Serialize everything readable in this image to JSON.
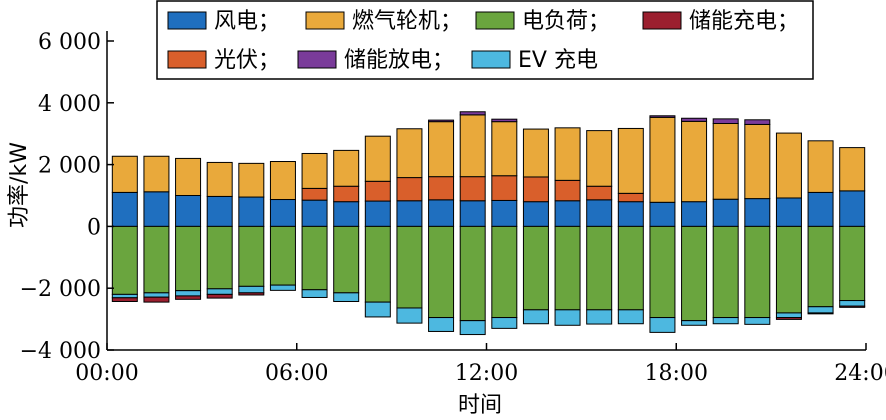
{
  "chart_data": {
    "type": "bar",
    "stacked": true,
    "xlabel": "时间",
    "ylabel": "功率/kW",
    "ylim": [
      -4000,
      6000
    ],
    "yticks": [
      6000,
      4000,
      2000,
      0,
      -2000,
      -4000
    ],
    "ytick_labels": [
      "6 000",
      "4 000",
      "2 000",
      "0",
      "−2 000",
      "−4 000"
    ],
    "xlim": [
      0,
      24
    ],
    "xticks": [
      0,
      6,
      12,
      18,
      24
    ],
    "xtick_labels": [
      "00:00",
      "06:00",
      "12:00",
      "18:00",
      "24:00"
    ],
    "grid": false,
    "legend_position": "top",
    "legend_rows": [
      [
        "风电；",
        "燃气轮机；",
        "电负荷；",
        "储能充电；"
      ],
      [
        "光伏；",
        "储能放电；",
        "EV 充电"
      ]
    ],
    "hours": [
      1,
      2,
      3,
      4,
      5,
      6,
      7,
      8,
      9,
      10,
      11,
      12,
      13,
      14,
      15,
      16,
      17,
      18,
      19,
      20,
      21,
      22,
      23,
      24
    ],
    "series": [
      {
        "name": "风电",
        "color": "#1f6fbf",
        "values": [
          1100,
          1120,
          1000,
          970,
          950,
          870,
          850,
          800,
          820,
          830,
          860,
          830,
          840,
          800,
          830,
          860,
          800,
          780,
          800,
          880,
          900,
          920,
          1100,
          1150
        ]
      },
      {
        "name": "光伏",
        "color": "#d95f2b",
        "values": [
          0,
          0,
          0,
          0,
          0,
          0,
          380,
          500,
          640,
          750,
          750,
          780,
          800,
          800,
          660,
          440,
          270,
          0,
          0,
          0,
          0,
          0,
          0,
          0
        ]
      },
      {
        "name": "燃气轮机",
        "color": "#e9a93b",
        "values": [
          1170,
          1150,
          1200,
          1100,
          1090,
          1230,
          1130,
          1160,
          1460,
          1580,
          1780,
          2000,
          1750,
          1550,
          1700,
          1800,
          2100,
          2750,
          2600,
          2450,
          2400,
          2100,
          1670,
          1400
        ]
      },
      {
        "name": "储能放电",
        "color": "#7a3b9a",
        "values": [
          0,
          0,
          0,
          0,
          0,
          0,
          0,
          0,
          0,
          0,
          50,
          100,
          80,
          0,
          0,
          0,
          0,
          50,
          100,
          150,
          150,
          0,
          0,
          0
        ]
      },
      {
        "name": "电负荷",
        "color": "#6aa53e",
        "values": [
          -2200,
          -2150,
          -2080,
          -2020,
          -1940,
          -1900,
          -2050,
          -2150,
          -2450,
          -2640,
          -2950,
          -3050,
          -2950,
          -2700,
          -2700,
          -2700,
          -2700,
          -2950,
          -3050,
          -2950,
          -2950,
          -2800,
          -2600,
          -2400
        ]
      },
      {
        "name": "EV 充电",
        "color": "#4db8e0",
        "values": [
          -110,
          -140,
          -170,
          -180,
          -210,
          -170,
          -250,
          -280,
          -480,
          -490,
          -450,
          -450,
          -350,
          -450,
          -500,
          -460,
          -450,
          -480,
          -150,
          -200,
          -220,
          -150,
          -200,
          -180
        ]
      },
      {
        "name": "储能充电",
        "color": "#9b1f2f",
        "values": [
          -120,
          -160,
          -110,
          -120,
          -70,
          0,
          0,
          0,
          0,
          0,
          0,
          0,
          0,
          0,
          0,
          0,
          0,
          0,
          0,
          0,
          0,
          -60,
          -30,
          -40
        ]
      }
    ]
  }
}
